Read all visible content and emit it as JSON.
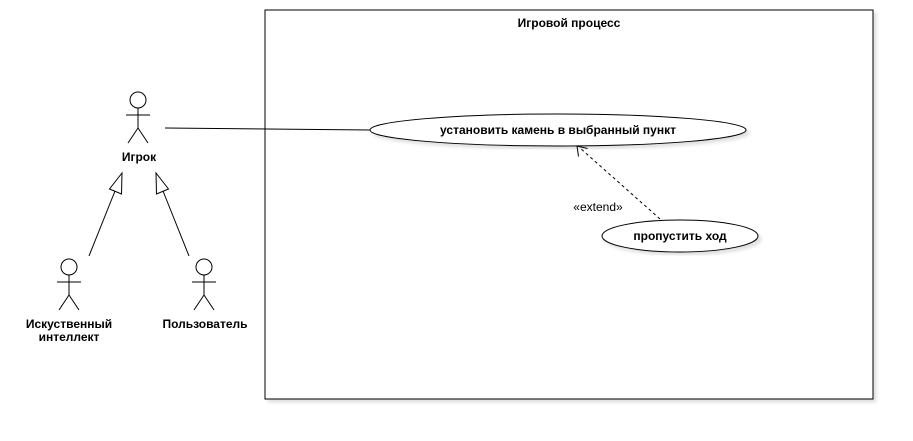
{
  "system": {
    "title": "Игровой процесс"
  },
  "actors": {
    "player": "Игрок",
    "ai_line1": "Искуственный",
    "ai_line2": "интеллект",
    "user": "Пользователь"
  },
  "use_cases": {
    "place_stone": "установить камень в выбранный пункт",
    "skip_turn": "пропустить ход"
  },
  "relations": {
    "extend_label": "«extend»"
  }
}
